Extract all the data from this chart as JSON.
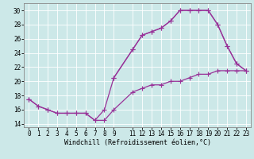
{
  "xlabel": "Windchill (Refroidissement éolien,°C)",
  "bg_color": "#cce8e8",
  "line_color": "#993399",
  "marker": "+",
  "markersize": 4,
  "linewidth": 0.9,
  "xlim": [
    -0.5,
    23.5
  ],
  "ylim": [
    13.5,
    31.0
  ],
  "xticks": [
    0,
    1,
    2,
    3,
    4,
    5,
    6,
    7,
    8,
    9,
    11,
    12,
    13,
    14,
    15,
    16,
    17,
    18,
    19,
    20,
    21,
    22,
    23
  ],
  "yticks": [
    14,
    16,
    18,
    20,
    22,
    24,
    26,
    28,
    30
  ],
  "series1_x": [
    0,
    1,
    2,
    3,
    4,
    5,
    6,
    7,
    8,
    9,
    11,
    12,
    13,
    14,
    15,
    16,
    17,
    18,
    19,
    20,
    21,
    22,
    23
  ],
  "series1_y": [
    17.5,
    16.5,
    16.0,
    15.5,
    15.5,
    15.5,
    15.5,
    14.5,
    14.5,
    16.0,
    18.5,
    19.0,
    19.5,
    19.5,
    20.0,
    20.0,
    20.5,
    21.0,
    21.0,
    21.5,
    21.5,
    21.5,
    21.5
  ],
  "series2_x": [
    0,
    1,
    2,
    3,
    4,
    5,
    6,
    7,
    8,
    9,
    11,
    12,
    13,
    14,
    15,
    16,
    17,
    18,
    19,
    20,
    21,
    22,
    23
  ],
  "series2_y": [
    17.5,
    16.5,
    16.0,
    15.5,
    15.5,
    15.5,
    15.5,
    14.5,
    16.0,
    20.5,
    24.5,
    26.5,
    27.0,
    27.5,
    28.5,
    30.0,
    30.0,
    30.0,
    30.0,
    28.0,
    25.0,
    22.5,
    21.5
  ],
  "series3_x": [
    9,
    11,
    12,
    13,
    14,
    15,
    16,
    17,
    18,
    19,
    20,
    21,
    22,
    23
  ],
  "series3_y": [
    20.5,
    24.5,
    26.5,
    27.0,
    27.5,
    28.5,
    30.0,
    30.0,
    30.0,
    30.0,
    28.0,
    25.0,
    22.5,
    21.5
  ],
  "tick_fontsize": 5.5,
  "xlabel_fontsize": 6.0,
  "grid_color": "#ffffff",
  "grid_lw": 0.6,
  "spine_color": "#888888",
  "spine_lw": 0.6
}
